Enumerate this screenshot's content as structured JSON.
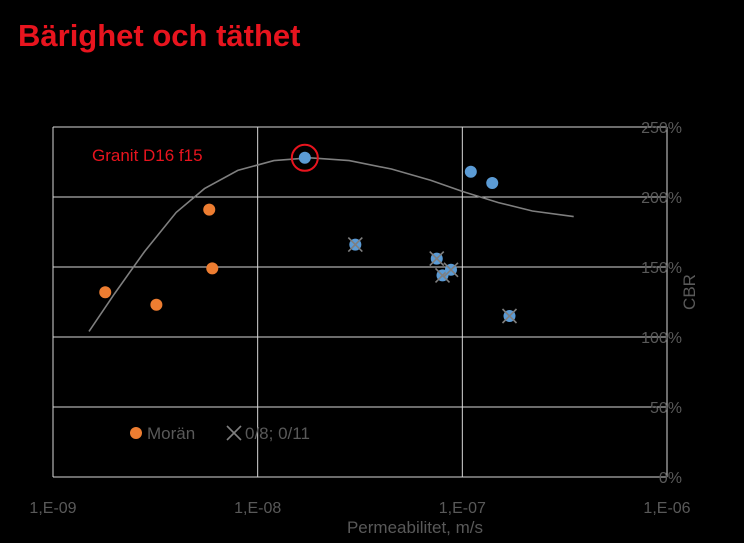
{
  "slide": {
    "title": "Bärighet och täthet"
  },
  "chart_data": {
    "type": "scatter",
    "xscale": "log",
    "xlim": [
      1e-09,
      1e-06
    ],
    "x_ticks": [
      "1,E-09",
      "1,E-08",
      "1,E-07",
      "1,E-06"
    ],
    "ylim": [
      0,
      250
    ],
    "y_ticks": [
      "0%",
      "50%",
      "100%",
      "150%",
      "200%",
      "250%"
    ],
    "xlabel": "Permeabilitet, m/s",
    "ylabel": "CBR",
    "y_axis_side": "right",
    "grid": true,
    "legend_position": "lower-left",
    "series": [
      {
        "name": "Morän",
        "marker": "circle",
        "color": "#ed7d31",
        "points": [
          {
            "x": 1.8e-09,
            "y": 132
          },
          {
            "x": 3.2e-09,
            "y": 123
          },
          {
            "x": 5.8e-09,
            "y": 191
          },
          {
            "x": 6e-09,
            "y": 149
          }
        ]
      },
      {
        "name": "0/8; 0/11",
        "marker": "x",
        "color": "#5b9bd5",
        "points": [
          {
            "x": 3e-08,
            "y": 166
          },
          {
            "x": 7.5e-08,
            "y": 156
          },
          {
            "x": 8e-08,
            "y": 144
          },
          {
            "x": 8.8e-08,
            "y": 148
          },
          {
            "x": 1.7e-07,
            "y": 115
          }
        ]
      },
      {
        "marker": "circle",
        "color": "#5b9bd5",
        "points": [
          {
            "x": 1.7e-08,
            "y": 228
          },
          {
            "x": 1.1e-07,
            "y": 218
          },
          {
            "x": 1.4e-07,
            "y": 210
          }
        ]
      }
    ],
    "trendline": {
      "color": "#7f7f7f",
      "points": [
        {
          "x": 1.5e-09,
          "y": 104
        },
        {
          "x": 2e-09,
          "y": 131
        },
        {
          "x": 2.8e-09,
          "y": 161
        },
        {
          "x": 4e-09,
          "y": 189
        },
        {
          "x": 5.5e-09,
          "y": 206
        },
        {
          "x": 8e-09,
          "y": 219
        },
        {
          "x": 1.2e-08,
          "y": 226
        },
        {
          "x": 1.8e-08,
          "y": 228
        },
        {
          "x": 2.8e-08,
          "y": 226
        },
        {
          "x": 4.5e-08,
          "y": 220
        },
        {
          "x": 7e-08,
          "y": 212
        },
        {
          "x": 1e-07,
          "y": 204
        },
        {
          "x": 1.5e-07,
          "y": 196
        },
        {
          "x": 2.2e-07,
          "y": 190
        },
        {
          "x": 3.5e-07,
          "y": 186
        }
      ]
    },
    "highlight": {
      "x": 1.7e-08,
      "y": 228,
      "color": "#e8141e"
    },
    "annotations": [
      {
        "text": "Granit D16 f15",
        "color": "#e8141e"
      }
    ]
  }
}
